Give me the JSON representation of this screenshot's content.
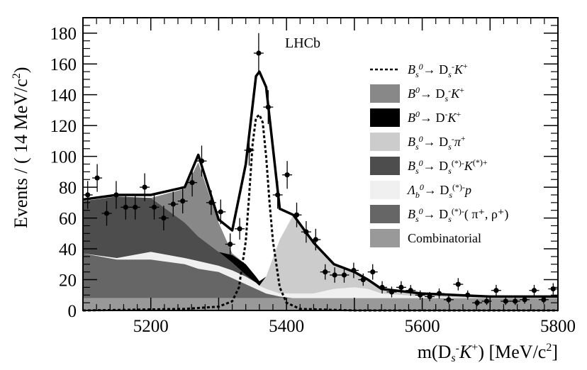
{
  "chart_data": {
    "type": "histogram-with-stacked-fit",
    "experiment_label": "LHCb",
    "xlabel": "m(D_s^- K^+) [MeV/c^2]",
    "ylabel": "Events / ( 14 MeV/c^2 )",
    "xlim": [
      5100,
      5800
    ],
    "ylim": [
      0,
      190
    ],
    "xticks": [
      5200,
      5300,
      5400,
      5500,
      5600,
      5700,
      5800
    ],
    "xtick_labels": [
      "5200",
      "5400",
      "5600",
      "5800"
    ],
    "xtick_label_values": [
      5200,
      5400,
      5600,
      5800
    ],
    "yticks": [
      0,
      20,
      40,
      60,
      80,
      100,
      120,
      140,
      160,
      180
    ],
    "ytick_labels": [
      "0",
      "20",
      "40",
      "60",
      "80",
      "100",
      "120",
      "140",
      "160",
      "180"
    ],
    "legend_position": "right",
    "legend": [
      {
        "key": "signal",
        "label_parts": [
          "B",
          "s",
          "0",
          "→ D",
          "s",
          "-",
          "K",
          "+"
        ],
        "style": "dashed-line",
        "color": "#000000"
      },
      {
        "key": "bd_dsk",
        "label_parts": [
          "B",
          "",
          "0",
          "→ D",
          "s",
          "-",
          "K",
          "+"
        ],
        "style": "fill",
        "color": "#888888"
      },
      {
        "key": "bd_dk",
        "label_parts": [
          "B",
          "",
          "0",
          "→ D",
          "",
          "-",
          "K",
          "+"
        ],
        "style": "fill",
        "color": "#000000"
      },
      {
        "key": "bs_dspi",
        "label_parts": [
          "B",
          "s",
          "0",
          "→ D",
          "s",
          "-",
          "π",
          "+"
        ],
        "style": "fill",
        "color": "#cccccc"
      },
      {
        "key": "bs_dsstk",
        "label_parts": [
          "B",
          "s",
          "0",
          "→ D",
          "s",
          "(*)-",
          "K",
          "(*)+"
        ],
        "style": "fill",
        "color": "#4d4d4d"
      },
      {
        "key": "lb_dsp",
        "label_parts": [
          "Λ",
          "b",
          "0",
          "→ D",
          "s",
          "(*)-",
          "p",
          ""
        ],
        "style": "fill",
        "color": "#f0f0f0"
      },
      {
        "key": "bs_dsstpi",
        "label_parts": [
          "B",
          "s",
          "0",
          "→ D",
          "s",
          "(*)-",
          "( π⁺, ρ⁺)",
          ""
        ],
        "style": "fill",
        "color": "#666666"
      },
      {
        "key": "comb",
        "label_parts": [
          "Combinatorial",
          "",
          "",
          "",
          "",
          "",
          "",
          ""
        ],
        "style": "fill",
        "color": "#999999"
      }
    ],
    "data_points": {
      "x": [
        5107,
        5121,
        5135,
        5149,
        5163,
        5177,
        5191,
        5205,
        5219,
        5233,
        5247,
        5261,
        5275,
        5289,
        5303,
        5317,
        5331,
        5345,
        5359,
        5373,
        5387,
        5401,
        5415,
        5429,
        5443,
        5457,
        5471,
        5485,
        5499,
        5513,
        5527,
        5541,
        5555,
        5569,
        5583,
        5597,
        5611,
        5625,
        5639,
        5653,
        5667,
        5681,
        5695,
        5709,
        5723,
        5737,
        5751,
        5765,
        5779,
        5793
      ],
      "y": [
        75,
        86,
        63,
        75,
        67,
        67,
        80,
        67,
        60,
        69,
        71,
        83,
        97,
        70,
        64,
        43,
        53,
        104,
        167,
        132,
        75,
        88,
        62,
        51,
        46,
        25,
        23,
        23,
        26,
        20,
        25,
        15,
        12,
        15,
        13,
        10,
        9,
        11,
        7,
        17,
        10,
        5,
        6,
        13,
        6,
        6,
        7,
        13,
        7,
        14
      ],
      "err": [
        9,
        9,
        8,
        9,
        8,
        8,
        9,
        8,
        8,
        8,
        8,
        9,
        10,
        8,
        8,
        7,
        7,
        10,
        13,
        11,
        9,
        9,
        8,
        7,
        7,
        5,
        5,
        5,
        5,
        4,
        5,
        4,
        3.5,
        4,
        3.5,
        3,
        3,
        3.3,
        2.6,
        4,
        3,
        2.2,
        2.4,
        3.6,
        2.4,
        2.4,
        2.6,
        3.6,
        2.6,
        3.7
      ]
    },
    "components": {
      "x": [
        5100,
        5150,
        5200,
        5250,
        5270,
        5300,
        5320,
        5340,
        5355,
        5360,
        5370,
        5390,
        5410,
        5440,
        5470,
        5500,
        5520,
        5540,
        5600,
        5700,
        5800
      ],
      "comb": [
        8,
        8,
        8,
        8,
        8,
        8,
        8,
        8,
        8,
        8,
        8,
        8,
        8,
        8,
        8,
        8,
        8,
        8,
        8,
        8,
        8
      ],
      "bs_dsstpi": [
        37,
        33,
        33,
        30,
        27,
        25,
        21,
        17,
        14,
        13,
        11,
        9,
        8,
        8,
        8,
        8,
        8,
        8,
        8,
        8,
        8
      ],
      "lb_dsp": [
        37,
        34,
        38,
        34,
        32,
        29,
        26,
        22,
        18,
        16,
        14,
        11,
        11,
        11,
        14,
        15,
        14,
        11,
        9,
        8,
        8
      ],
      "bs_dsstk": [
        71,
        74,
        73,
        57,
        48,
        38,
        31,
        23,
        18,
        16,
        14,
        11,
        11,
        11,
        14,
        15,
        14,
        11,
        9,
        8,
        8
      ],
      "bs_dspi": [
        71,
        74,
        73,
        57,
        48,
        38,
        31,
        23,
        18,
        16,
        22,
        46,
        62,
        44,
        30,
        25,
        20,
        14,
        11,
        8,
        8
      ],
      "bd_dk": [
        71,
        74,
        73,
        57,
        48,
        38,
        36,
        30,
        22,
        19,
        22,
        46,
        62,
        44,
        30,
        25,
        20,
        14,
        11,
        8,
        8
      ],
      "bd_dsk": [
        71,
        74,
        73,
        79,
        96,
        57,
        37,
        30,
        22,
        19,
        22,
        46,
        62,
        44,
        30,
        25,
        20,
        14,
        11,
        8,
        8
      ],
      "total": [
        72,
        75,
        75,
        80,
        101,
        59,
        52,
        95,
        152,
        155,
        145,
        66,
        62,
        44,
        30,
        25,
        20,
        14,
        11,
        9,
        9
      ]
    },
    "signal_curve": {
      "x": [
        5100,
        5250,
        5300,
        5320,
        5330,
        5340,
        5345,
        5350,
        5355,
        5360,
        5365,
        5370,
        5375,
        5380,
        5390,
        5400,
        5420,
        5500,
        5800
      ],
      "y": [
        0,
        1,
        2.5,
        6,
        15,
        45,
        75,
        108,
        125,
        127,
        122,
        100,
        70,
        45,
        15,
        5,
        1,
        0,
        0
      ]
    }
  }
}
